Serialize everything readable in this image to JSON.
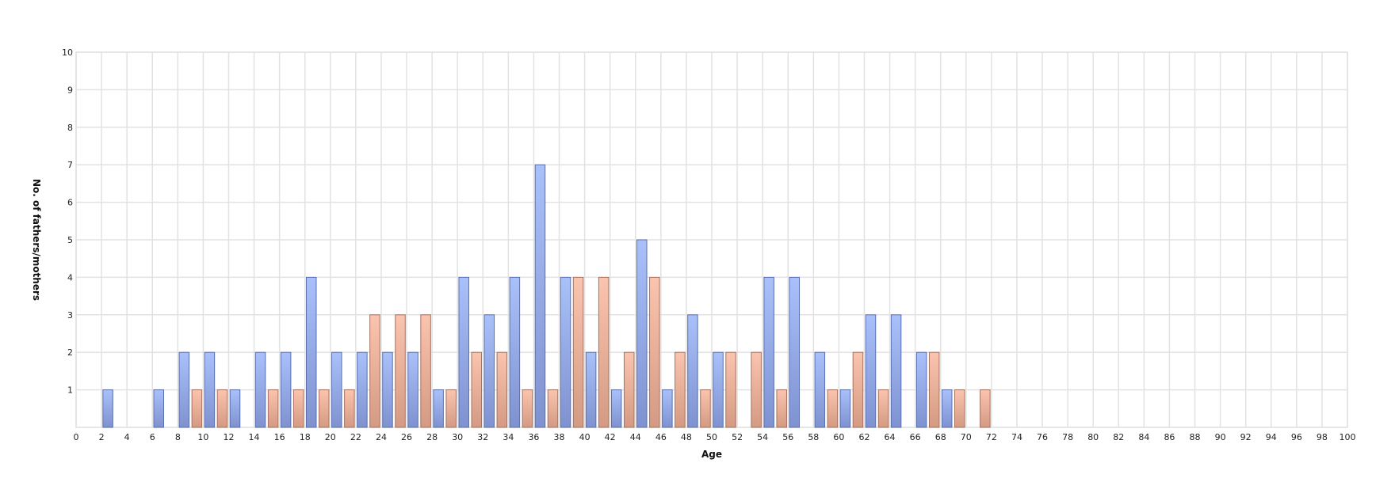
{
  "chart_data": {
    "type": "bar",
    "title": "",
    "xlabel": "Age",
    "ylabel": "No. of fathers/mothers",
    "xlim": [
      0,
      100
    ],
    "ylim": [
      0,
      10
    ],
    "x_ticks": [
      0,
      2,
      4,
      6,
      8,
      10,
      12,
      14,
      16,
      18,
      20,
      22,
      24,
      26,
      28,
      30,
      32,
      34,
      36,
      38,
      40,
      42,
      44,
      46,
      48,
      50,
      52,
      54,
      56,
      58,
      60,
      62,
      64,
      66,
      68,
      70,
      72,
      74,
      76,
      78,
      80,
      82,
      84,
      86,
      88,
      90,
      92,
      94,
      96,
      98,
      100
    ],
    "y_ticks": [
      1,
      2,
      3,
      4,
      5,
      6,
      7,
      8,
      9,
      10
    ],
    "grid": true,
    "series": [
      {
        "color": "#8fa8ea",
        "x": [
          2,
          6,
          8,
          10,
          12,
          14,
          16,
          18,
          20,
          22,
          24,
          26,
          28,
          30,
          32,
          34,
          36,
          38,
          40,
          42,
          44,
          46,
          48,
          50,
          54,
          56,
          58,
          60,
          62,
          64,
          66,
          68
        ],
        "values": [
          1,
          1,
          2,
          2,
          1,
          2,
          2,
          4,
          2,
          2,
          2,
          2,
          1,
          4,
          3,
          4,
          7,
          4,
          2,
          1,
          5,
          1,
          3,
          2,
          4,
          4,
          2,
          1,
          3,
          3,
          2,
          1
        ]
      },
      {
        "color": "#efab92",
        "x": [
          9,
          11,
          15,
          17,
          19,
          21,
          23,
          25,
          27,
          29,
          31,
          33,
          35,
          37,
          39,
          41,
          43,
          45,
          47,
          49,
          51,
          53,
          55,
          59,
          61,
          63,
          67,
          69,
          71
        ],
        "values": [
          1,
          1,
          1,
          1,
          1,
          1,
          3,
          3,
          3,
          1,
          2,
          2,
          1,
          1,
          4,
          4,
          2,
          4,
          2,
          1,
          2,
          2,
          1,
          1,
          2,
          1,
          2,
          1,
          1
        ]
      }
    ]
  }
}
